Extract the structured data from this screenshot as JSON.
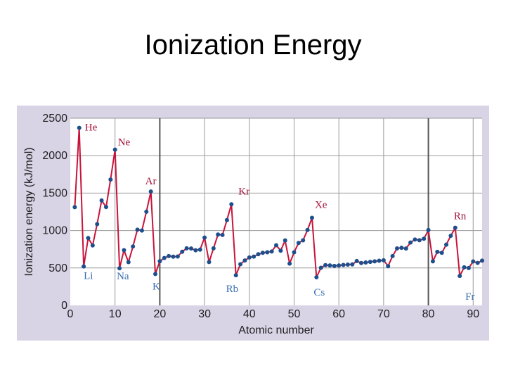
{
  "slide": {
    "title": "Ionization Energy"
  },
  "chart_data": {
    "type": "line",
    "title": "",
    "xlabel": "Atomic number",
    "ylabel": "Ionization energy (kJ/mol)",
    "xlim": [
      0,
      92
    ],
    "ylim": [
      0,
      2500
    ],
    "xticks": [
      0,
      10,
      20,
      30,
      40,
      50,
      60,
      70,
      80,
      90
    ],
    "yticks": [
      0,
      500,
      1000,
      1500,
      2000,
      2500
    ],
    "grid": true,
    "legend": "none",
    "colors": {
      "plot_bg": "#ffffff",
      "panel_bg": "#d9d3e6",
      "grid": "#9a9a9a",
      "major_grid": "#555555",
      "line": "#c8143c",
      "point": "#1c4f8c",
      "peak_label": "#a3123a",
      "trough_label": "#3a6fb0"
    },
    "series": [
      {
        "x": [
          1,
          2,
          3,
          4,
          5,
          6,
          7,
          8,
          9,
          10,
          11,
          12,
          13,
          14,
          15,
          16,
          17,
          18,
          19,
          20,
          21,
          22,
          23,
          24,
          25,
          26,
          27,
          28,
          29,
          30,
          31,
          32,
          33,
          34,
          35,
          36,
          37,
          38,
          39,
          40,
          41,
          42,
          43,
          44,
          45,
          46,
          47,
          48,
          49,
          50,
          51,
          52,
          53,
          54,
          55,
          56,
          57,
          58,
          59,
          60,
          61,
          62,
          63,
          64,
          65,
          66,
          67,
          68,
          69,
          70,
          71,
          72,
          73,
          74,
          75,
          76,
          77,
          78,
          79,
          80,
          81,
          82,
          83,
          84,
          85,
          86,
          87,
          88,
          89,
          90,
          91,
          92
        ],
        "values": [
          1312,
          2372,
          520,
          900,
          801,
          1086,
          1402,
          1314,
          1681,
          2081,
          496,
          738,
          578,
          787,
          1012,
          1000,
          1251,
          1521,
          419,
          590,
          633,
          659,
          651,
          653,
          717,
          762,
          760,
          737,
          745,
          906,
          579,
          762,
          947,
          941,
          1140,
          1351,
          403,
          550,
          600,
          640,
          652,
          684,
          702,
          710,
          720,
          804,
          731,
          868,
          558,
          709,
          834,
          869,
          1008,
          1170,
          376,
          503,
          538,
          534,
          527,
          533,
          540,
          545,
          547,
          593,
          566,
          573,
          581,
          589,
          597,
          603,
          524,
          659,
          761,
          770,
          760,
          840,
          880,
          870,
          890,
          1007,
          589,
          716,
          703,
          812,
          930,
          1037,
          393,
          509,
          499,
          587,
          568,
          598
        ]
      }
    ],
    "annotations": [
      {
        "text": "He",
        "x": 2
      },
      {
        "text": "Ne",
        "x": 10
      },
      {
        "text": "Ar",
        "x": 18
      },
      {
        "text": "Kr",
        "x": 36
      },
      {
        "text": "Xe",
        "x": 54
      },
      {
        "text": "Rn",
        "x": 86
      },
      {
        "text": "Li",
        "x": 3
      },
      {
        "text": "Na",
        "x": 11
      },
      {
        "text": "K",
        "x": 19
      },
      {
        "text": "Rb",
        "x": 37
      },
      {
        "text": "Cs",
        "x": 55
      },
      {
        "text": "Fr",
        "x": 87
      }
    ]
  }
}
